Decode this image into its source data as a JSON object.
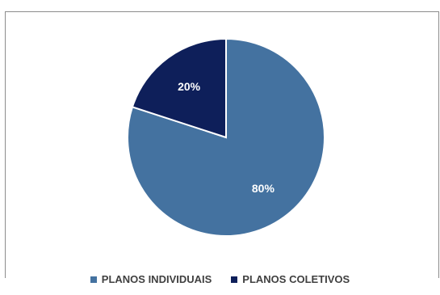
{
  "chart_data": {
    "type": "pie",
    "title": "",
    "labels": [
      "PLANOS INDIVIDUAIS",
      "PLANOS COLETIVOS"
    ],
    "values": [
      80,
      20
    ],
    "data_labels": [
      "80%",
      "20%"
    ],
    "colors": [
      "#4472a0",
      "#0e1f5a"
    ],
    "legend_position": "bottom",
    "start_angle_deg": 0,
    "direction": "clockwise"
  }
}
